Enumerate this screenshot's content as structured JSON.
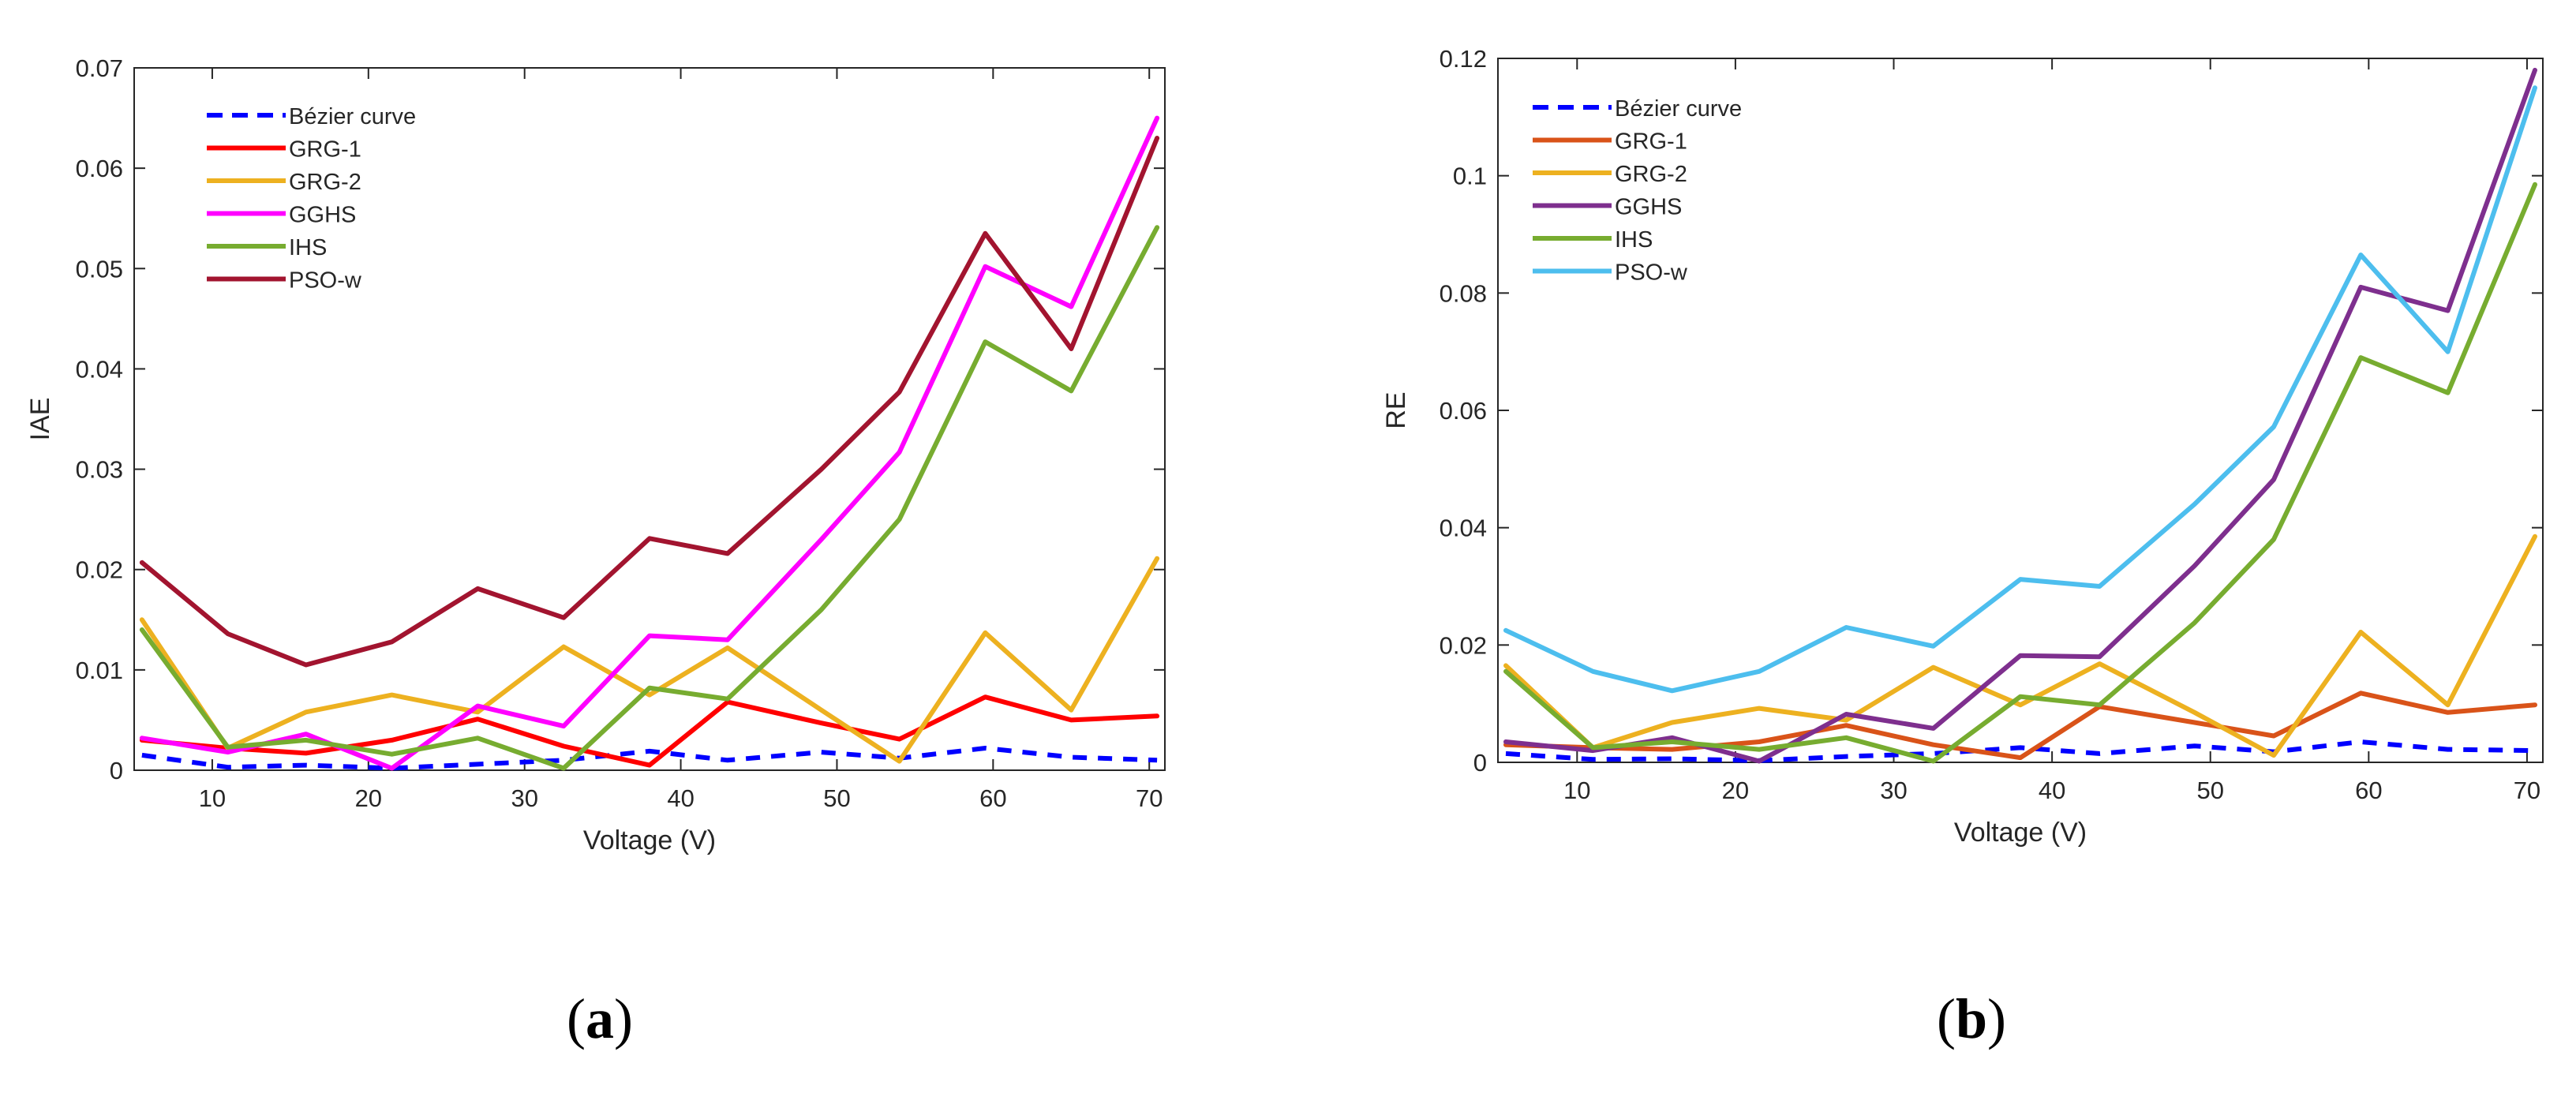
{
  "chart_data": [
    {
      "type": "line",
      "panel": "(a)",
      "xlabel": "Voltage (V)",
      "ylabel": "IAE",
      "xlim": [
        5,
        71
      ],
      "ylim": [
        0,
        0.07
      ],
      "xticks": [
        10,
        20,
        30,
        40,
        50,
        60,
        70
      ],
      "yticks": [
        0,
        0.01,
        0.02,
        0.03,
        0.04,
        0.05,
        0.06,
        0.07
      ],
      "ytick_labels": [
        "0",
        "0.01",
        "0.02",
        "0.03",
        "0.04",
        "0.05",
        "0.06",
        "0.07"
      ],
      "legend_position": "top-left",
      "x": [
        5.5,
        11,
        16,
        21.5,
        27,
        32.5,
        38,
        43,
        49,
        54,
        59.5,
        65,
        70.5
      ],
      "series": [
        {
          "name": "Bézier curve",
          "color": "#0000ff",
          "dashed": true,
          "values": [
            0.0015,
            0.0003,
            0.0005,
            0.0002,
            0.0006,
            0.001,
            0.0019,
            0.001,
            0.0018,
            0.0012,
            0.0022,
            0.0013,
            0.001
          ]
        },
        {
          "name": "GRG-1",
          "color": "#ff0000",
          "dashed": false,
          "values": [
            0.003,
            0.0022,
            0.0017,
            0.003,
            0.0051,
            0.0024,
            0.0005,
            0.0068,
            0.0047,
            0.0031,
            0.0073,
            0.005,
            0.0054
          ]
        },
        {
          "name": "GRG-2",
          "color": "#edb120",
          "dashed": false,
          "values": [
            0.015,
            0.0022,
            0.0058,
            0.0075,
            0.0058,
            0.0123,
            0.0075,
            0.0122,
            0.006,
            0.0009,
            0.0137,
            0.006,
            0.0211
          ]
        },
        {
          "name": "GGHS",
          "color": "#ff00ff",
          "dashed": false,
          "values": [
            0.0032,
            0.0018,
            0.0036,
            0.0002,
            0.0064,
            0.0044,
            0.0134,
            0.013,
            0.023,
            0.0317,
            0.0502,
            0.0462,
            0.065
          ]
        },
        {
          "name": "IHS",
          "color": "#77ac30",
          "dashed": false,
          "values": [
            0.014,
            0.0023,
            0.003,
            0.0016,
            0.0032,
            0.0002,
            0.0082,
            0.0071,
            0.016,
            0.025,
            0.0427,
            0.0378,
            0.0541
          ]
        },
        {
          "name": "PSO-w",
          "color": "#a2142f",
          "dashed": false,
          "values": [
            0.0207,
            0.0136,
            0.0105,
            0.0128,
            0.0181,
            0.0152,
            0.0231,
            0.0216,
            0.03,
            0.0377,
            0.0535,
            0.042,
            0.063
          ]
        }
      ]
    },
    {
      "type": "line",
      "panel": "(b)",
      "xlabel": "Voltage (V)",
      "ylabel": "RE",
      "xlim": [
        5,
        71
      ],
      "ylim": [
        0,
        0.12
      ],
      "xticks": [
        10,
        20,
        30,
        40,
        50,
        60,
        70
      ],
      "yticks": [
        0,
        0.02,
        0.04,
        0.06,
        0.08,
        0.1,
        0.12
      ],
      "ytick_labels": [
        "0",
        "0.02",
        "0.04",
        "0.06",
        "0.08",
        "0.1",
        "0.12"
      ],
      "legend_position": "top-left",
      "x": [
        5.5,
        11,
        16,
        21.5,
        27,
        32.5,
        38,
        43,
        49,
        54,
        59.5,
        65,
        70.5
      ],
      "series": [
        {
          "name": "Bézier curve",
          "color": "#0000ff",
          "dashed": true,
          "values": [
            0.0015,
            0.0005,
            0.0006,
            0.0003,
            0.001,
            0.0015,
            0.0025,
            0.0015,
            0.0028,
            0.0018,
            0.0035,
            0.0022,
            0.002
          ]
        },
        {
          "name": "GRG-1",
          "color": "#d95319",
          "dashed": false,
          "values": [
            0.003,
            0.0025,
            0.0022,
            0.0035,
            0.0063,
            0.003,
            0.0008,
            0.0095,
            0.0068,
            0.0045,
            0.0118,
            0.0085,
            0.0098
          ]
        },
        {
          "name": "GRG-2",
          "color": "#edb120",
          "dashed": false,
          "values": [
            0.0165,
            0.0025,
            0.0068,
            0.0092,
            0.0072,
            0.0162,
            0.0098,
            0.0168,
            0.0085,
            0.0012,
            0.0222,
            0.0098,
            0.0385
          ]
        },
        {
          "name": "GGHS",
          "color": "#7e2f8e",
          "dashed": false,
          "values": [
            0.0035,
            0.002,
            0.0042,
            0.0002,
            0.0082,
            0.0058,
            0.0182,
            0.018,
            0.0335,
            0.0482,
            0.081,
            0.077,
            0.118
          ]
        },
        {
          "name": "IHS",
          "color": "#77ac30",
          "dashed": false,
          "values": [
            0.0155,
            0.0025,
            0.0035,
            0.0022,
            0.0042,
            0.0002,
            0.0112,
            0.0098,
            0.0238,
            0.038,
            0.069,
            0.063,
            0.0985
          ]
        },
        {
          "name": "PSO-w",
          "color": "#4dbeee",
          "dashed": false,
          "values": [
            0.0225,
            0.0155,
            0.0122,
            0.0155,
            0.023,
            0.0198,
            0.0312,
            0.03,
            0.044,
            0.0572,
            0.0865,
            0.07,
            0.115
          ]
        }
      ]
    }
  ]
}
